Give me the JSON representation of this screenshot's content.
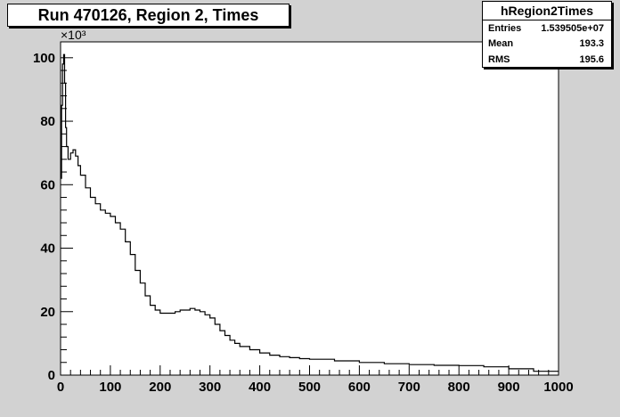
{
  "title": "Run 470126, Region 2, Times",
  "stats": {
    "name": "hRegion2Times",
    "rows": [
      {
        "label": "Entries",
        "value": "1.539505e+07"
      },
      {
        "label": "Mean",
        "value": "193.3"
      },
      {
        "label": "RMS",
        "value": "195.6"
      }
    ]
  },
  "chart_data": {
    "type": "histogram",
    "title": "Run 470126, Region 2, Times",
    "xlabel": "",
    "ylabel": "",
    "y_multiplier_label": "×10³",
    "xlim": [
      0,
      1000
    ],
    "ylim": [
      0,
      105
    ],
    "x_ticks": [
      0,
      100,
      200,
      300,
      400,
      500,
      600,
      700,
      800,
      900,
      1000
    ],
    "y_ticks": [
      0,
      20,
      40,
      60,
      80,
      100
    ],
    "grid": false,
    "x": [
      0,
      2,
      4,
      6,
      8,
      10,
      12,
      15,
      20,
      25,
      30,
      35,
      40,
      50,
      60,
      70,
      80,
      90,
      100,
      110,
      120,
      130,
      140,
      150,
      160,
      170,
      180,
      190,
      200,
      210,
      220,
      230,
      240,
      250,
      260,
      270,
      280,
      290,
      300,
      310,
      320,
      330,
      340,
      350,
      360,
      380,
      400,
      420,
      440,
      460,
      480,
      500,
      550,
      600,
      650,
      700,
      750,
      800,
      850,
      900,
      950,
      1000
    ],
    "values": [
      62,
      85,
      98,
      101,
      92,
      78,
      72,
      68,
      70,
      71,
      69,
      66,
      63,
      59,
      56,
      54,
      52,
      51,
      50,
      48,
      46,
      42,
      38,
      33,
      29,
      25,
      22,
      20.5,
      19.5,
      19.5,
      19.5,
      20,
      20.5,
      20.5,
      21,
      20.5,
      20,
      19,
      18,
      16,
      14,
      12.5,
      11,
      10,
      9,
      8,
      7,
      6.3,
      5.8,
      5.5,
      5.2,
      5,
      4.5,
      4,
      3.6,
      3.3,
      3.1,
      3,
      2.6,
      2,
      1.2,
      0.4
    ]
  }
}
